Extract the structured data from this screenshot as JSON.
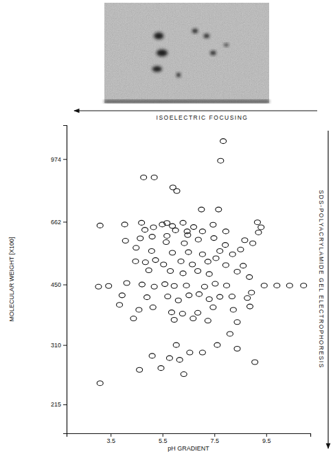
{
  "chart_data": {
    "type": "scatter",
    "annotations": [
      "ISOELECTRIC FOCUSING",
      "SDS-POLYACRYLAMIDE GEL ELECTROPHORESIS"
    ],
    "x_label": "pH GRADIENT",
    "y_label": "MOLECULAR WEIGHT [X100]",
    "log": "y",
    "marker": "open-circle",
    "color": "#111111",
    "xlim": [
      1.8,
      11.2
    ],
    "ylim": [
      180,
      1200
    ],
    "xticks": [
      3.5,
      5.5,
      7.5,
      9.5
    ],
    "yticks": [
      215,
      310,
      450,
      662,
      974
    ],
    "x": [
      7.84,
      7.74,
      4.77,
      5.18,
      5.9,
      6.05,
      7.0,
      7.66,
      9.16,
      9.3,
      9.2,
      4.69,
      5.67,
      6.29,
      3.09,
      4.04,
      5.15,
      5.49,
      5.88,
      6.7,
      7.45,
      4.82,
      6.0,
      6.45,
      7.04,
      7.94,
      5.1,
      5.67,
      6.47,
      4.64,
      6.88,
      7.48,
      4.07,
      5.64,
      6.34,
      7.92,
      8.67,
      8.98,
      4.48,
      5.08,
      5.88,
      6.5,
      7.04,
      7.71,
      8.2,
      8.51,
      4.46,
      4.84,
      5.23,
      5.54,
      6.21,
      6.65,
      7.25,
      7.56,
      7.94,
      8.61,
      4.97,
      5.8,
      6.29,
      6.86,
      7.3,
      8.38,
      8.85,
      3.03,
      3.42,
      4.12,
      4.71,
      5.18,
      5.59,
      5.95,
      6.42,
      7.12,
      7.53,
      7.97,
      9.42,
      9.91,
      10.4,
      10.94,
      3.94,
      4.9,
      5.7,
      6.11,
      6.52,
      6.91,
      7.3,
      7.71,
      8.18,
      8.77,
      8.93,
      3.84,
      4.59,
      5.13,
      5.85,
      6.27,
      6.86,
      7.45,
      8.23,
      8.87,
      4.38,
      5.95,
      6.68,
      7.25,
      8.38,
      8.1,
      3.09,
      4.61,
      5.1,
      5.44,
      5.77,
      6.03,
      6.16,
      6.32,
      6.55,
      7.04,
      7.61,
      8.38,
      9.06
    ],
    "values": [
      1088,
      964,
      870,
      870,
      818,
      800,
      714,
      714,
      660,
      640,
      620,
      658,
      657,
      658,
      647,
      651,
      640,
      651,
      645,
      641,
      650,
      630,
      628,
      624,
      624,
      624,
      604,
      607,
      610,
      598,
      593,
      599,
      589,
      584,
      580,
      574,
      591,
      580,
      564,
      553,
      547,
      549,
      542,
      553,
      542,
      558,
      519,
      516,
      523,
      509,
      519,
      509,
      518,
      529,
      507,
      505,
      491,
      489,
      482,
      489,
      480,
      487,
      471,
      444,
      446,
      454,
      450,
      444,
      451,
      446,
      447,
      444,
      452,
      447,
      447,
      447,
      447,
      447,
      421,
      416,
      418,
      408,
      421,
      424,
      411,
      417,
      418,
      414,
      428,
      397,
      385,
      391,
      379,
      376,
      378,
      391,
      385,
      393,
      365,
      362,
      365,
      360,
      357,
      332,
      245,
      266,
      290,
      269,
      286,
      310,
      283,
      259,
      296,
      296,
      310,
      303,
      279
    ]
  }
}
